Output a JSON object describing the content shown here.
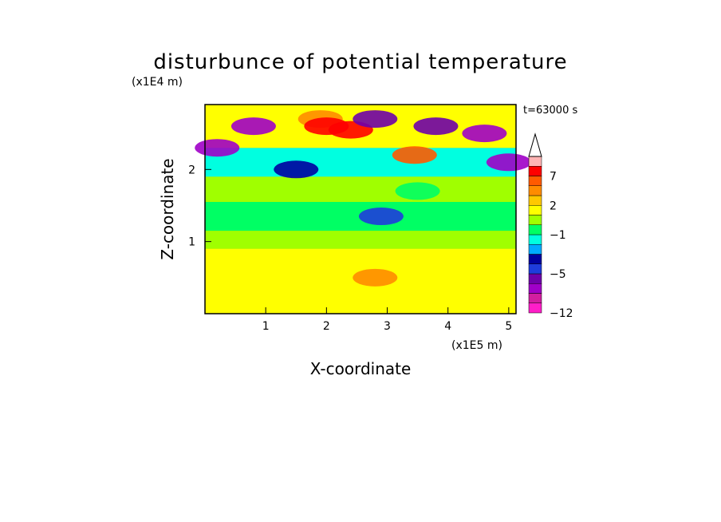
{
  "chart_data": {
    "type": "heatmap",
    "title": "disturbunce of potential temperature",
    "xlabel": "X-coordinate",
    "ylabel": "Z-coordinate",
    "x_unit": "(x1E5 m)",
    "y_unit": "(x1E4 m)",
    "time_label": "t=63000 s",
    "xlim": [
      0,
      5.12
    ],
    "ylim": [
      0,
      2.9
    ],
    "x_ticks": [
      1,
      2,
      3,
      4,
      5
    ],
    "y_ticks": [
      1,
      2
    ],
    "colorbar": {
      "levels": [
        -12,
        -10,
        -8,
        -6,
        -5,
        -4,
        -3,
        -2,
        -1,
        0,
        1,
        2,
        3,
        5,
        7,
        9,
        11
      ],
      "labeled_ticks": [
        -12,
        -5,
        -1,
        2,
        7
      ],
      "colors": [
        "#ff1ec8",
        "#d21ea0",
        "#a000c8",
        "#6e00aa",
        "#1e3cdc",
        "#0000a0",
        "#00aaff",
        "#00ffe0",
        "#00ff64",
        "#a0ff00",
        "#ffff00",
        "#ffc800",
        "#ff8c00",
        "#ff5a00",
        "#ff0000",
        "#ffb4b4"
      ],
      "extend": "max"
    },
    "field": {
      "layers": [
        {
          "z_min": 0.0,
          "z_max": 0.9,
          "mean": 1.5
        },
        {
          "z_min": 0.9,
          "z_max": 1.15,
          "mean": 0.5
        },
        {
          "z_min": 1.15,
          "z_max": 1.55,
          "mean": -0.3
        },
        {
          "z_min": 1.55,
          "z_max": 1.9,
          "mean": 0.3
        },
        {
          "z_min": 1.9,
          "z_max": 2.3,
          "mean": -1.5
        },
        {
          "z_min": 2.3,
          "z_max": 2.9,
          "mean": 1.0
        }
      ],
      "features": [
        {
          "x": 0.2,
          "z": 2.3,
          "value": -8
        },
        {
          "x": 0.8,
          "z": 2.6,
          "value": -7
        },
        {
          "x": 1.9,
          "z": 2.7,
          "value": 3
        },
        {
          "x": 2.0,
          "z": 2.6,
          "value": 8
        },
        {
          "x": 2.4,
          "z": 2.55,
          "value": 7
        },
        {
          "x": 2.8,
          "z": 2.7,
          "value": -6
        },
        {
          "x": 3.45,
          "z": 2.2,
          "value": 5
        },
        {
          "x": 3.8,
          "z": 2.6,
          "value": -6
        },
        {
          "x": 4.6,
          "z": 2.5,
          "value": -7
        },
        {
          "x": 5.0,
          "z": 2.1,
          "value": -7
        },
        {
          "x": 2.9,
          "z": 1.35,
          "value": -5
        },
        {
          "x": 1.5,
          "z": 2.0,
          "value": -4
        },
        {
          "x": 3.5,
          "z": 1.7,
          "value": -1
        },
        {
          "x": 2.8,
          "z": 0.5,
          "value": 4
        }
      ]
    }
  }
}
